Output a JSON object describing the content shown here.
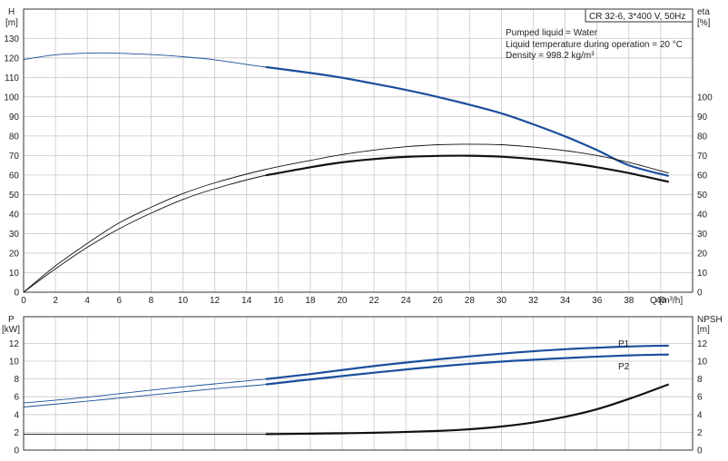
{
  "info": {
    "model": "CR 32-6, 3*400 V, 50Hz",
    "lines": [
      "Pumped liquid = Water",
      "Liquid temperature during operation = 20 °C",
      "Density = 998.2 kg/m³"
    ]
  },
  "chart_data": [
    {
      "type": "line",
      "title": "",
      "xlabel": "Q [m³/h]",
      "ylabel_left": "H [m]",
      "ylabel_right": "eta [%]",
      "xlim": [
        0,
        42
      ],
      "ylim_left": [
        0,
        145
      ],
      "ylim_right": [
        0,
        145
      ],
      "x_ticks": [
        0,
        2,
        4,
        6,
        8,
        10,
        12,
        14,
        16,
        18,
        20,
        22,
        24,
        26,
        28,
        30,
        32,
        34,
        36,
        38,
        40
      ],
      "y_ticks_left": [
        0,
        10,
        20,
        30,
        40,
        50,
        60,
        70,
        80,
        90,
        100,
        110,
        120,
        130
      ],
      "y_ticks_right": [
        0,
        10,
        20,
        30,
        40,
        50,
        60,
        70,
        80,
        90,
        100
      ],
      "grid": true,
      "series": [
        {
          "axis": "left",
          "color": "#1a4f9c",
          "x": [
            0,
            2,
            4,
            5.5,
            8,
            10,
            12,
            15,
            18,
            20,
            22,
            24,
            26,
            28,
            30,
            32,
            34,
            36,
            38,
            40.5
          ],
          "values": [
            119.2,
            121.6,
            122.4,
            122.5,
            121.7,
            120.6,
            119.0,
            115.5,
            112.3,
            109.8,
            106.8,
            103.6,
            100.0,
            96.0,
            91.6,
            86.0,
            79.8,
            72.8,
            65.0,
            59.5
          ],
          "bold_from": 15.2
        },
        {
          "axis": "right",
          "color": "#111111",
          "x": [
            0,
            2,
            4,
            6,
            8,
            10,
            12,
            15,
            18,
            20,
            22,
            24,
            26,
            28,
            30,
            32,
            34,
            36,
            38,
            40.5
          ],
          "values": [
            0,
            13.5,
            25.0,
            35.5,
            43.5,
            50.5,
            56.0,
            62.5,
            67.5,
            70.5,
            72.8,
            74.5,
            75.5,
            75.8,
            75.5,
            74.3,
            72.5,
            70.0,
            66.5,
            61.0
          ],
          "bold_from": null
        },
        {
          "axis": "right",
          "color": "#111111",
          "x": [
            0,
            2,
            4,
            6,
            8,
            10,
            12,
            15,
            18,
            20,
            22,
            24,
            26,
            28,
            30,
            32,
            34,
            36,
            38,
            40.5
          ],
          "values": [
            0,
            12.0,
            23.0,
            32.5,
            40.5,
            47.5,
            53.0,
            59.5,
            64.0,
            66.5,
            68.2,
            69.3,
            69.8,
            69.9,
            69.4,
            68.2,
            66.4,
            64.0,
            61.0,
            56.5
          ],
          "bold_from": 15.2
        }
      ]
    },
    {
      "type": "line",
      "title": "",
      "xlabel": "",
      "ylabel_left": "P [kW]",
      "ylabel_right": "NPSH [m]",
      "xlim": [
        0,
        42
      ],
      "ylim_left": [
        0,
        15
      ],
      "ylim_right": [
        0,
        15
      ],
      "y_ticks_left": [
        0,
        2,
        4,
        6,
        8,
        10,
        12
      ],
      "y_ticks_right": [
        0,
        2,
        4,
        6,
        8,
        10,
        12
      ],
      "grid": true,
      "series": [
        {
          "name": "P1",
          "axis": "left",
          "color": "#1a4f9c",
          "x": [
            0,
            4,
            8,
            12,
            15,
            18,
            22,
            26,
            30,
            34,
            38,
            40.5
          ],
          "values": [
            5.3,
            5.95,
            6.75,
            7.45,
            7.95,
            8.55,
            9.45,
            10.2,
            10.85,
            11.35,
            11.65,
            11.75
          ],
          "bold_from": 15.2
        },
        {
          "name": "P2",
          "axis": "left",
          "color": "#1a4f9c",
          "x": [
            0,
            4,
            8,
            12,
            15,
            18,
            22,
            26,
            30,
            34,
            38,
            40.5
          ],
          "values": [
            4.85,
            5.5,
            6.2,
            6.9,
            7.35,
            7.95,
            8.7,
            9.4,
            9.95,
            10.35,
            10.65,
            10.75
          ],
          "bold_from": 15.2
        },
        {
          "axis": "right",
          "color": "#111111",
          "x": [
            0,
            15.2,
            18,
            22,
            26,
            28,
            30,
            32,
            34,
            36,
            38,
            40.5
          ],
          "values": [
            1.8,
            1.8,
            1.85,
            1.95,
            2.15,
            2.35,
            2.65,
            3.1,
            3.75,
            4.6,
            5.75,
            7.4
          ],
          "bold_from": 15.2
        }
      ]
    }
  ]
}
